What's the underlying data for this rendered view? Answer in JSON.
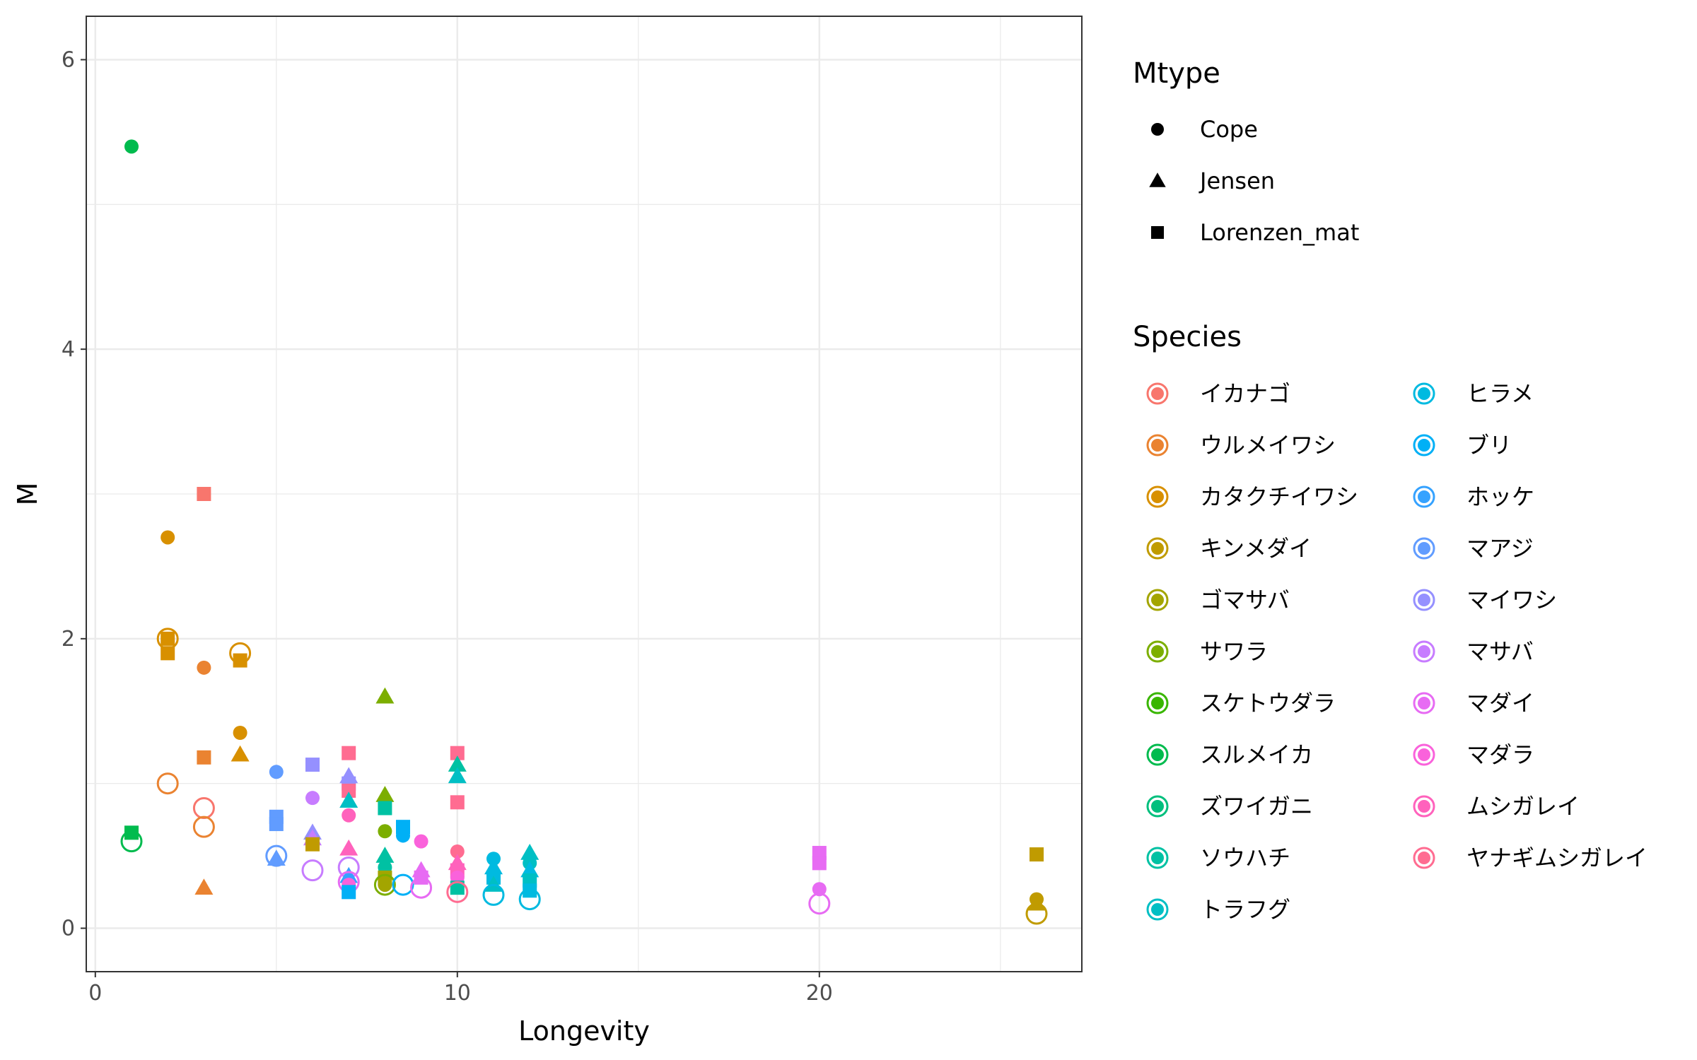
{
  "chart_data": {
    "type": "scatter",
    "xlabel": "Longevity",
    "ylabel": "M",
    "xlim": [
      -0.25,
      27.25
    ],
    "ylim": [
      -0.3,
      6.3
    ],
    "x_ticks": [
      0,
      10,
      20
    ],
    "y_ticks": [
      0,
      2,
      4,
      6
    ],
    "x_tick_labels": [
      "0",
      "10",
      "20"
    ],
    "y_tick_labels": [
      "0",
      "2",
      "4",
      "6"
    ],
    "grid": true,
    "legend_position": "right",
    "shape_legend": {
      "title": "Mtype",
      "entries": [
        {
          "label": "Cope",
          "shape": "circle"
        },
        {
          "label": "Jensen",
          "shape": "triangle"
        },
        {
          "label": "Lorenzen_mat",
          "shape": "square"
        }
      ]
    },
    "color_legend": {
      "title": "Species",
      "entries": [
        {
          "label": "イカナゴ",
          "color": "#F8766D"
        },
        {
          "label": "ウルメイワシ",
          "color": "#EA8331"
        },
        {
          "label": "カタクチイワシ",
          "color": "#D89000"
        },
        {
          "label": "キンメダイ",
          "color": "#C09B00"
        },
        {
          "label": "ゴマサバ",
          "color": "#A3A500"
        },
        {
          "label": "サワラ",
          "color": "#7CAE00"
        },
        {
          "label": "スケトウダラ",
          "color": "#39B600"
        },
        {
          "label": "スルメイカ",
          "color": "#00BB4E"
        },
        {
          "label": "ズワイガニ",
          "color": "#00BF7D"
        },
        {
          "label": "ソウハチ",
          "color": "#00C1A3"
        },
        {
          "label": "トラフグ",
          "color": "#00BFC4"
        },
        {
          "label": "ヒラメ",
          "color": "#00BAE0"
        },
        {
          "label": "ブリ",
          "color": "#00B0F6"
        },
        {
          "label": "ホッケ",
          "color": "#35A2FF"
        },
        {
          "label": "マアジ",
          "color": "#619CFF"
        },
        {
          "label": "マイワシ",
          "color": "#9590FF"
        },
        {
          "label": "マサバ",
          "color": "#C77CFF"
        },
        {
          "label": "マダイ",
          "color": "#E76BF3"
        },
        {
          "label": "マダラ",
          "color": "#FA62DB"
        },
        {
          "label": "ムシガレイ",
          "color": "#FF62BC"
        },
        {
          "label": "ヤナギムシガレイ",
          "color": "#FF6C91"
        }
      ]
    },
    "points": [
      {
        "x": 1,
        "y": 5.4,
        "shape": "circle",
        "color": "#00BB4E"
      },
      {
        "x": 1,
        "y": 0.66,
        "shape": "square",
        "color": "#00BB4E"
      },
      {
        "x": 1,
        "y": 0.6,
        "shape": "open",
        "color": "#00BB4E"
      },
      {
        "x": 2,
        "y": 2.7,
        "shape": "circle",
        "color": "#D89000"
      },
      {
        "x": 2,
        "y": 2.0,
        "shape": "square",
        "color": "#D89000"
      },
      {
        "x": 2,
        "y": 2.0,
        "shape": "open",
        "color": "#D89000"
      },
      {
        "x": 2,
        "y": 1.9,
        "shape": "square",
        "color": "#D89000"
      },
      {
        "x": 2,
        "y": 1.0,
        "shape": "open",
        "color": "#EA8331"
      },
      {
        "x": 3,
        "y": 3.0,
        "shape": "square",
        "color": "#F8766D"
      },
      {
        "x": 3,
        "y": 1.8,
        "shape": "circle",
        "color": "#EA8331"
      },
      {
        "x": 3,
        "y": 1.18,
        "shape": "square",
        "color": "#EA8331"
      },
      {
        "x": 3,
        "y": 0.83,
        "shape": "open",
        "color": "#F8766D"
      },
      {
        "x": 3,
        "y": 0.7,
        "shape": "open",
        "color": "#EA8331"
      },
      {
        "x": 3,
        "y": 0.28,
        "shape": "triangle",
        "color": "#EA8331"
      },
      {
        "x": 4,
        "y": 1.9,
        "shape": "open",
        "color": "#D89000"
      },
      {
        "x": 4,
        "y": 1.85,
        "shape": "square",
        "color": "#D89000"
      },
      {
        "x": 4,
        "y": 1.35,
        "shape": "circle",
        "color": "#D89000"
      },
      {
        "x": 4,
        "y": 1.2,
        "shape": "triangle",
        "color": "#D89000"
      },
      {
        "x": 5,
        "y": 1.08,
        "shape": "circle",
        "color": "#619CFF"
      },
      {
        "x": 5,
        "y": 0.77,
        "shape": "square",
        "color": "#619CFF"
      },
      {
        "x": 5,
        "y": 0.72,
        "shape": "square",
        "color": "#619CFF"
      },
      {
        "x": 5,
        "y": 0.5,
        "shape": "open",
        "color": "#619CFF"
      },
      {
        "x": 5,
        "y": 0.48,
        "shape": "triangle",
        "color": "#619CFF"
      },
      {
        "x": 6,
        "y": 1.13,
        "shape": "square",
        "color": "#9590FF"
      },
      {
        "x": 6,
        "y": 0.9,
        "shape": "circle",
        "color": "#C77CFF"
      },
      {
        "x": 6,
        "y": 0.66,
        "shape": "triangle",
        "color": "#9590FF"
      },
      {
        "x": 6,
        "y": 0.62,
        "shape": "triangle",
        "color": "#C77CFF"
      },
      {
        "x": 6,
        "y": 0.58,
        "shape": "square",
        "color": "#C09B00"
      },
      {
        "x": 6,
        "y": 0.4,
        "shape": "open",
        "color": "#C77CFF"
      },
      {
        "x": 7,
        "y": 1.21,
        "shape": "square",
        "color": "#FF6C91"
      },
      {
        "x": 7,
        "y": 1.05,
        "shape": "triangle",
        "color": "#9590FF"
      },
      {
        "x": 7,
        "y": 1.0,
        "shape": "square",
        "color": "#9590FF"
      },
      {
        "x": 7,
        "y": 0.95,
        "shape": "square",
        "color": "#FF6C91"
      },
      {
        "x": 7,
        "y": 0.88,
        "shape": "triangle",
        "color": "#00BFC4"
      },
      {
        "x": 7,
        "y": 0.78,
        "shape": "circle",
        "color": "#FF62BC"
      },
      {
        "x": 7,
        "y": 0.55,
        "shape": "triangle",
        "color": "#FF62BC"
      },
      {
        "x": 7,
        "y": 0.42,
        "shape": "open",
        "color": "#C77CFF"
      },
      {
        "x": 7,
        "y": 0.36,
        "shape": "triangle",
        "color": "#35A2FF"
      },
      {
        "x": 7,
        "y": 0.32,
        "shape": "open",
        "color": "#E76BF3"
      },
      {
        "x": 7,
        "y": 0.3,
        "shape": "circle",
        "color": "#FA62DB"
      },
      {
        "x": 7,
        "y": 0.25,
        "shape": "square",
        "color": "#00B0F6"
      },
      {
        "x": 8,
        "y": 1.6,
        "shape": "triangle",
        "color": "#7CAE00"
      },
      {
        "x": 8,
        "y": 0.92,
        "shape": "triangle",
        "color": "#7CAE00"
      },
      {
        "x": 8,
        "y": 0.83,
        "shape": "square",
        "color": "#00C1A3"
      },
      {
        "x": 8,
        "y": 0.67,
        "shape": "circle",
        "color": "#7CAE00"
      },
      {
        "x": 8,
        "y": 0.5,
        "shape": "triangle",
        "color": "#00C1A3"
      },
      {
        "x": 8,
        "y": 0.42,
        "shape": "circle",
        "color": "#00C1A3"
      },
      {
        "x": 8,
        "y": 0.35,
        "shape": "square",
        "color": "#A3A500"
      },
      {
        "x": 8,
        "y": 0.3,
        "shape": "open",
        "color": "#7CAE00"
      },
      {
        "x": 8,
        "y": 0.3,
        "shape": "circle",
        "color": "#A3A500"
      },
      {
        "x": 8.5,
        "y": 0.7,
        "shape": "square",
        "color": "#00B0F6"
      },
      {
        "x": 8.5,
        "y": 0.64,
        "shape": "circle",
        "color": "#00B0F6"
      },
      {
        "x": 8.5,
        "y": 0.3,
        "shape": "open",
        "color": "#00B0F6"
      },
      {
        "x": 9,
        "y": 0.6,
        "shape": "circle",
        "color": "#FA62DB"
      },
      {
        "x": 9,
        "y": 0.4,
        "shape": "triangle",
        "color": "#E76BF3"
      },
      {
        "x": 9,
        "y": 0.35,
        "shape": "square",
        "color": "#E76BF3"
      },
      {
        "x": 9,
        "y": 0.28,
        "shape": "open",
        "color": "#E76BF3"
      },
      {
        "x": 10,
        "y": 1.21,
        "shape": "square",
        "color": "#FF6C91"
      },
      {
        "x": 10,
        "y": 1.13,
        "shape": "triangle",
        "color": "#00C1A3"
      },
      {
        "x": 10,
        "y": 1.05,
        "shape": "triangle",
        "color": "#00BFC4"
      },
      {
        "x": 10,
        "y": 0.87,
        "shape": "square",
        "color": "#FF6C91"
      },
      {
        "x": 10,
        "y": 0.53,
        "shape": "circle",
        "color": "#FF6C91"
      },
      {
        "x": 10,
        "y": 0.45,
        "shape": "triangle",
        "color": "#FF62BC"
      },
      {
        "x": 10,
        "y": 0.4,
        "shape": "square",
        "color": "#FF62BC"
      },
      {
        "x": 10,
        "y": 0.35,
        "shape": "circle",
        "color": "#FA62DB"
      },
      {
        "x": 10,
        "y": 0.28,
        "shape": "square",
        "color": "#00C1A3"
      },
      {
        "x": 10,
        "y": 0.25,
        "shape": "open",
        "color": "#FF6C91"
      },
      {
        "x": 11,
        "y": 0.48,
        "shape": "circle",
        "color": "#00BAE0"
      },
      {
        "x": 11,
        "y": 0.42,
        "shape": "triangle",
        "color": "#00BAE0"
      },
      {
        "x": 11,
        "y": 0.35,
        "shape": "square",
        "color": "#00BAE0"
      },
      {
        "x": 11,
        "y": 0.3,
        "shape": "triangle",
        "color": "#00BFC4"
      },
      {
        "x": 11,
        "y": 0.23,
        "shape": "open",
        "color": "#00BAE0"
      },
      {
        "x": 12,
        "y": 0.52,
        "shape": "triangle",
        "color": "#00BFC4"
      },
      {
        "x": 12,
        "y": 0.45,
        "shape": "circle",
        "color": "#00BFC4"
      },
      {
        "x": 12,
        "y": 0.4,
        "shape": "triangle",
        "color": "#00BAE0"
      },
      {
        "x": 12,
        "y": 0.33,
        "shape": "square",
        "color": "#00BFC4"
      },
      {
        "x": 12,
        "y": 0.26,
        "shape": "square",
        "color": "#00BAE0"
      },
      {
        "x": 12,
        "y": 0.2,
        "shape": "open",
        "color": "#00BAE0"
      },
      {
        "x": 20,
        "y": 0.52,
        "shape": "square",
        "color": "#E76BF3"
      },
      {
        "x": 20,
        "y": 0.45,
        "shape": "square",
        "color": "#E76BF3"
      },
      {
        "x": 20,
        "y": 0.27,
        "shape": "circle",
        "color": "#E76BF3"
      },
      {
        "x": 20,
        "y": 0.17,
        "shape": "open",
        "color": "#E76BF3"
      },
      {
        "x": 26,
        "y": 0.51,
        "shape": "square",
        "color": "#C09B00"
      },
      {
        "x": 26,
        "y": 0.2,
        "shape": "circle",
        "color": "#C09B00"
      },
      {
        "x": 26,
        "y": 0.17,
        "shape": "triangle",
        "color": "#C09B00"
      },
      {
        "x": 26,
        "y": 0.1,
        "shape": "open",
        "color": "#C09B00"
      }
    ]
  }
}
